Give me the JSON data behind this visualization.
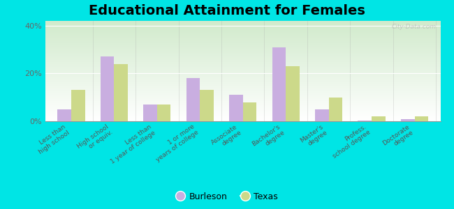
{
  "title": "Educational Attainment for Females",
  "categories": [
    "Less than\nhigh school",
    "High school\nor equiv.",
    "Less than\n1 year of college",
    "1 or more\nyears of college",
    "Associate\ndegree",
    "Bachelor's\ndegree",
    "Master's\ndegree",
    "Profess.\nschool degree",
    "Doctorate\ndegree"
  ],
  "burleson": [
    5.0,
    27.0,
    7.0,
    18.0,
    11.0,
    31.0,
    5.0,
    0.3,
    1.0
  ],
  "texas": [
    13.0,
    24.0,
    7.0,
    13.0,
    8.0,
    23.0,
    10.0,
    2.0,
    2.0
  ],
  "burleson_color": "#c9aee0",
  "texas_color": "#ccd98a",
  "bg_top_left": "#d4edcc",
  "bg_bottom_right": "#f5faf0",
  "outer_background": "#00e5e5",
  "ylim": [
    0,
    42
  ],
  "yticks": [
    0,
    20,
    40
  ],
  "ytick_labels": [
    "0%",
    "20%",
    "40%"
  ],
  "title_fontsize": 14,
  "legend_labels": [
    "Burleson",
    "Texas"
  ],
  "bar_width": 0.32
}
